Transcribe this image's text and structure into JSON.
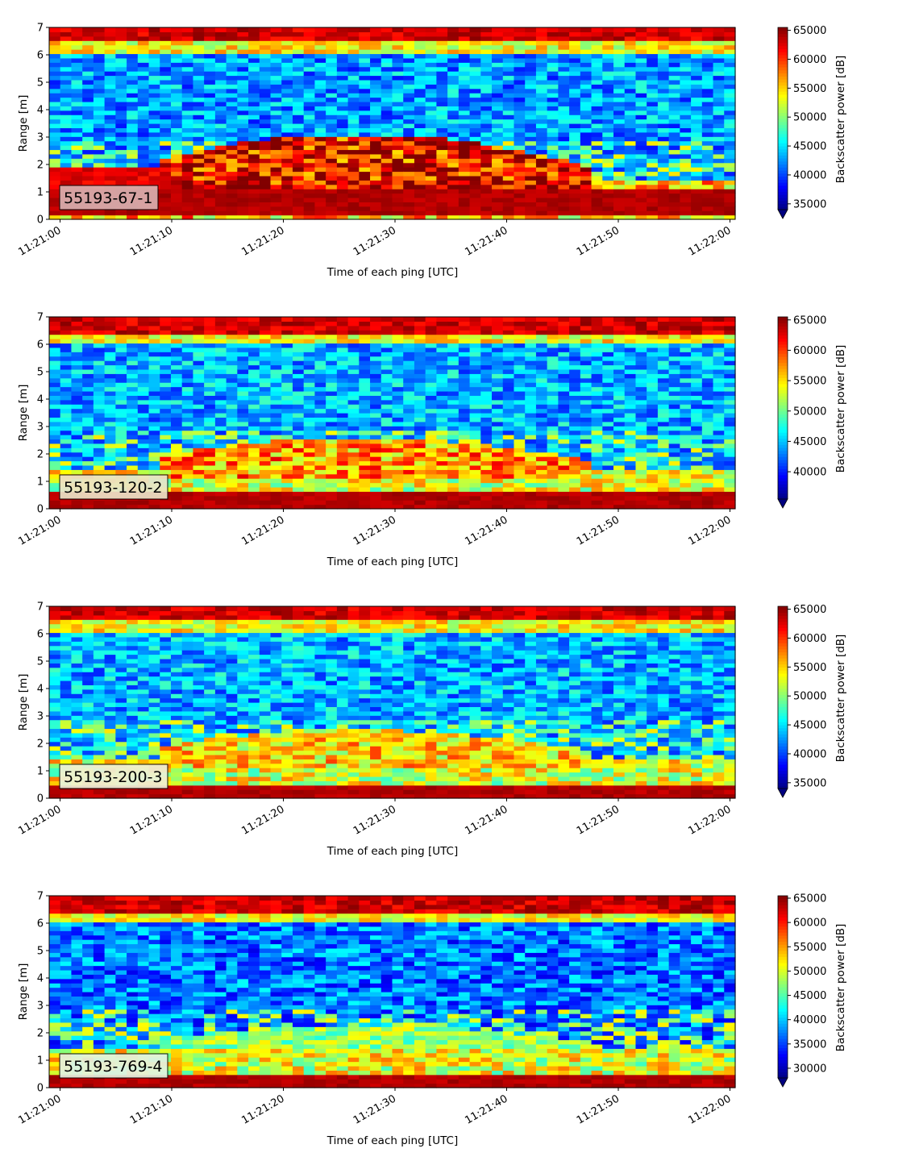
{
  "chart_data": [
    {
      "type": "heatmap",
      "panel_label": "55193-67-1",
      "xlabel": "Time of each ping [UTC]",
      "ylabel": "Range [m]",
      "x_ticks": [
        "11:21:00",
        "11:21:10",
        "11:21:20",
        "11:21:30",
        "11:21:40",
        "11:21:50",
        "11:22:00"
      ],
      "xlim": [
        "11:21:00",
        "11:22:00"
      ],
      "y_ticks": [
        "0",
        "1",
        "2",
        "3",
        "4",
        "5",
        "6",
        "7"
      ],
      "ylim": [
        0,
        7
      ],
      "colorbar": {
        "label": "Backscatter power [dB]",
        "min": 34000,
        "max": 65500,
        "ticks": [
          "35000",
          "40000",
          "45000",
          "50000",
          "55000",
          "60000",
          "65000"
        ],
        "tick_values": [
          35000,
          40000,
          45000,
          50000,
          55000,
          60000,
          65000
        ],
        "extend": "min",
        "colormap": "jet"
      },
      "features": {
        "surface_band_m": [
          0.2,
          1.1
        ],
        "top_band_m": [
          6.5,
          7.0
        ],
        "arch_peak_range_m": 3.1,
        "arch_time_range": [
          "11:21:10",
          "11:21:50"
        ]
      },
      "label_box_color": "#d9b0b0"
    },
    {
      "type": "heatmap",
      "panel_label": "55193-120-2",
      "xlabel": "Time of each ping [UTC]",
      "ylabel": "Range [m]",
      "x_ticks": [
        "11:21:00",
        "11:21:10",
        "11:21:20",
        "11:21:30",
        "11:21:40",
        "11:21:50",
        "11:22:00"
      ],
      "xlim": [
        "11:21:00",
        "11:22:00"
      ],
      "y_ticks": [
        "0",
        "1",
        "2",
        "3",
        "4",
        "5",
        "6",
        "7"
      ],
      "ylim": [
        0,
        7
      ],
      "colorbar": {
        "label": "Backscatter power [dB]",
        "min": 35500,
        "max": 65500,
        "ticks": [
          "40000",
          "45000",
          "50000",
          "55000",
          "60000",
          "65000"
        ],
        "tick_values": [
          40000,
          45000,
          50000,
          55000,
          60000,
          65000
        ],
        "extend": "min",
        "colormap": "jet"
      },
      "features": {
        "surface_band_m": [
          0.1,
          0.6
        ],
        "top_band_m": [
          6.4,
          7.0
        ],
        "arch_peak_range_m": 2.6,
        "arch_time_range": [
          "11:21:10",
          "11:21:45"
        ]
      },
      "label_box_color": "#ece4c8"
    },
    {
      "type": "heatmap",
      "panel_label": "55193-200-3",
      "xlabel": "Time of each ping [UTC]",
      "ylabel": "Range [m]",
      "x_ticks": [
        "11:21:00",
        "11:21:10",
        "11:21:20",
        "11:21:30",
        "11:21:40",
        "11:21:50",
        "11:22:00"
      ],
      "xlim": [
        "11:21:00",
        "11:22:00"
      ],
      "y_ticks": [
        "0",
        "1",
        "2",
        "3",
        "4",
        "5",
        "6",
        "7"
      ],
      "ylim": [
        0,
        7
      ],
      "colorbar": {
        "label": "Backscatter power [dB]",
        "min": 34000,
        "max": 65500,
        "ticks": [
          "35000",
          "40000",
          "45000",
          "50000",
          "55000",
          "60000",
          "65000"
        ],
        "tick_values": [
          35000,
          40000,
          45000,
          50000,
          55000,
          60000,
          65000
        ],
        "extend": "min",
        "colormap": "jet"
      },
      "features": {
        "surface_band_m": [
          0.1,
          0.5
        ],
        "top_band_m": [
          6.5,
          7.0
        ],
        "arch_peak_range_m": 2.5,
        "arch_time_range": [
          "11:21:12",
          "11:21:45"
        ]
      },
      "label_box_color": "#eef0d8"
    },
    {
      "type": "heatmap",
      "panel_label": "55193-769-4",
      "xlabel": "Time of each ping [UTC]",
      "ylabel": "Range [m]",
      "x_ticks": [
        "11:21:00",
        "11:21:10",
        "11:21:20",
        "11:21:30",
        "11:21:40",
        "11:21:50",
        "11:22:00"
      ],
      "xlim": [
        "11:21:00",
        "11:22:00"
      ],
      "y_ticks": [
        "0",
        "1",
        "2",
        "3",
        "4",
        "5",
        "6",
        "7"
      ],
      "ylim": [
        0,
        7
      ],
      "colorbar": {
        "label": "Backscatter power [dB]",
        "min": 28000,
        "max": 65500,
        "ticks": [
          "30000",
          "35000",
          "40000",
          "45000",
          "50000",
          "55000",
          "60000",
          "65000"
        ],
        "tick_values": [
          30000,
          35000,
          40000,
          45000,
          50000,
          55000,
          60000,
          65000
        ],
        "extend": "min",
        "colormap": "jet"
      },
      "features": {
        "surface_band_m": [
          0.1,
          0.4
        ],
        "top_band_m": [
          6.4,
          7.0
        ],
        "arch_peak_range_m": 2.3,
        "arch_time_range": [
          "11:21:15",
          "11:21:45"
        ]
      },
      "label_box_color": "#e4f2e0"
    }
  ]
}
